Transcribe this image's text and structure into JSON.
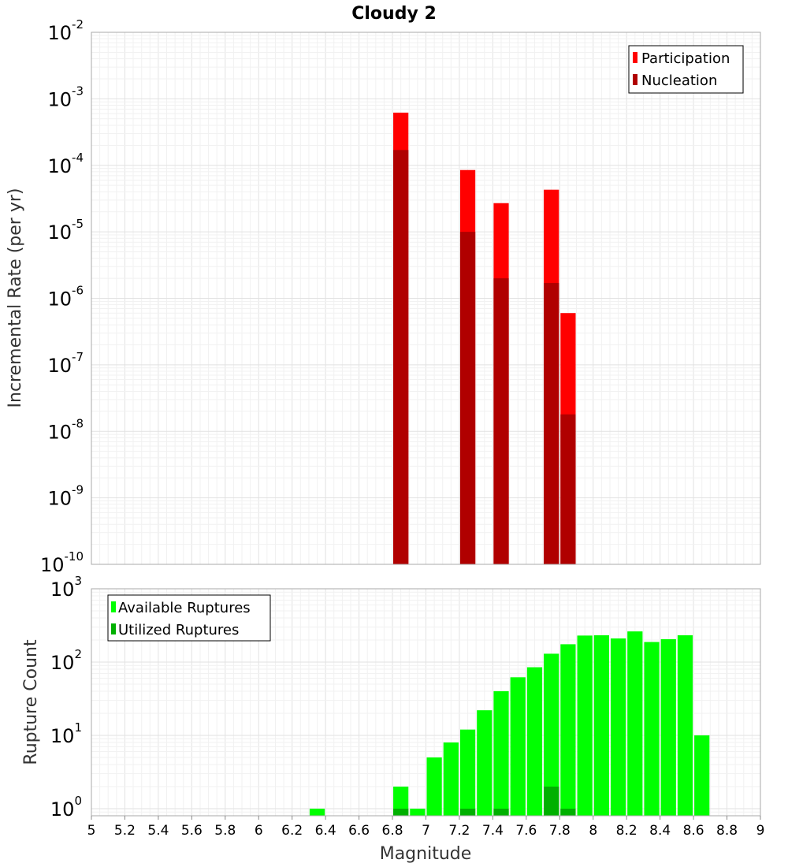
{
  "chart_data": [
    {
      "type": "bar",
      "title": "Cloudy 2",
      "ylabel": "Incremental Rate (per yr)",
      "xlabel": "",
      "x_range": [
        5,
        9
      ],
      "y_scale": "log",
      "y_range": [
        1e-10,
        0.01
      ],
      "y_ticks": [
        {
          "base": "10",
          "exp": "-2"
        },
        {
          "base": "10",
          "exp": "-3"
        },
        {
          "base": "10",
          "exp": "-4"
        },
        {
          "base": "10",
          "exp": "-5"
        },
        {
          "base": "10",
          "exp": "-6"
        },
        {
          "base": "10",
          "exp": "-7"
        },
        {
          "base": "10",
          "exp": "-8"
        },
        {
          "base": "10",
          "exp": "-9"
        },
        {
          "base": "10",
          "exp": "-10"
        }
      ],
      "bin_width": 0.1,
      "legend_position": "top-right",
      "grid": true,
      "series": [
        {
          "name": "Participation",
          "color": "#ff0000",
          "x": [
            6.85,
            7.25,
            7.45,
            7.75,
            7.85
          ],
          "values": [
            0.00062,
            8.5e-05,
            2.7e-05,
            4.3e-05,
            6e-07
          ]
        },
        {
          "name": "Nucleation",
          "color": "#b00000",
          "x": [
            6.85,
            7.25,
            7.45,
            7.75,
            7.85
          ],
          "values": [
            0.00017,
            1e-05,
            2e-06,
            1.7e-06,
            1.8e-08
          ]
        }
      ]
    },
    {
      "type": "bar",
      "title": "",
      "ylabel": "Rupture Count",
      "xlabel": "Magnitude",
      "x_range": [
        5,
        9
      ],
      "x_ticks": [
        "5",
        "5.2",
        "5.4",
        "5.6",
        "5.8",
        "6",
        "6.2",
        "6.4",
        "6.6",
        "6.8",
        "7",
        "7.2",
        "7.4",
        "7.6",
        "7.8",
        "8",
        "8.2",
        "8.4",
        "8.6",
        "8.8",
        "9"
      ],
      "y_scale": "log",
      "y_range": [
        0.8,
        1000
      ],
      "y_ticks": [
        {
          "base": "10",
          "exp": "3"
        },
        {
          "base": "10",
          "exp": "2"
        },
        {
          "base": "10",
          "exp": "1"
        },
        {
          "base": "10",
          "exp": "0"
        }
      ],
      "bin_width": 0.1,
      "legend_position": "top-left",
      "grid": true,
      "series": [
        {
          "name": "Available Ruptures",
          "color": "#00ff00",
          "x": [
            6.35,
            6.85,
            6.95,
            7.05,
            7.15,
            7.25,
            7.35,
            7.45,
            7.55,
            7.65,
            7.75,
            7.85,
            7.95,
            8.05,
            8.15,
            8.25,
            8.35,
            8.45,
            8.55,
            8.65
          ],
          "values": [
            1,
            2,
            1,
            5,
            8,
            12,
            22,
            40,
            62,
            85,
            130,
            175,
            230,
            232,
            210,
            262,
            188,
            205,
            232,
            10
          ]
        },
        {
          "name": "Utilized Ruptures",
          "color": "#00b000",
          "x": [
            6.85,
            7.25,
            7.45,
            7.75,
            7.85
          ],
          "values": [
            1,
            1,
            1,
            2,
            1
          ]
        }
      ]
    }
  ]
}
